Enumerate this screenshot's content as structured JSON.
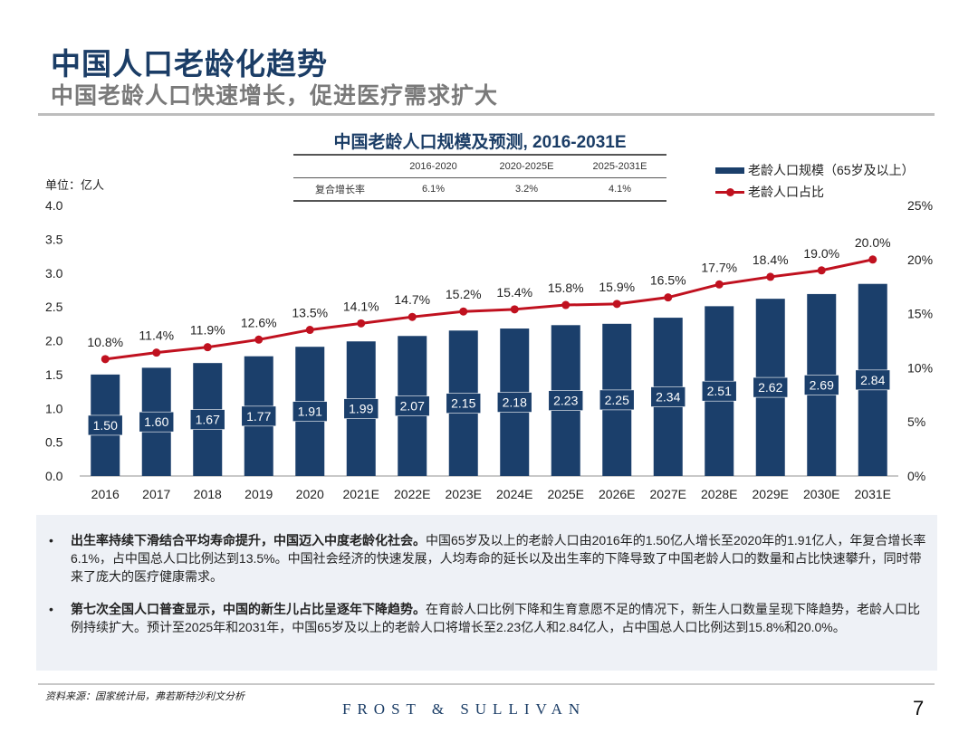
{
  "header": {
    "title": "中国人口老龄化趋势",
    "subtitle": "中国老龄人口快速增长，促进医疗需求扩大"
  },
  "cagr_table": {
    "columns": [
      "",
      "2016-2020",
      "2020-2025E",
      "2025-2031E"
    ],
    "row_label": "复合增长率",
    "values": [
      "6.1%",
      "3.2%",
      "4.1%"
    ]
  },
  "chart_data": {
    "type": "bar",
    "title": "中国老龄人口规模及预测, 2016-2031E",
    "unit_label": "单位：亿人",
    "categories": [
      "2016",
      "2017",
      "2018",
      "2019",
      "2020",
      "2021E",
      "2022E",
      "2023E",
      "2024E",
      "2025E",
      "2026E",
      "2027E",
      "2028E",
      "2029E",
      "2030E",
      "2031E"
    ],
    "series": [
      {
        "name": "老龄人口规模（65岁及以上）",
        "type": "bar",
        "axis": "left",
        "color": "#1b3f6b",
        "values": [
          1.5,
          1.6,
          1.67,
          1.77,
          1.91,
          1.99,
          2.07,
          2.15,
          2.18,
          2.23,
          2.25,
          2.34,
          2.51,
          2.62,
          2.69,
          2.84
        ],
        "labels": [
          "1.50",
          "1.60",
          "1.67",
          "1.77",
          "1.91",
          "1.99",
          "2.07",
          "2.15",
          "2.18",
          "2.23",
          "2.25",
          "2.34",
          "2.51",
          "2.62",
          "2.69",
          "2.84"
        ]
      },
      {
        "name": "老龄人口占比",
        "type": "line",
        "axis": "right",
        "color": "#c0111f",
        "values": [
          10.8,
          11.4,
          11.9,
          12.6,
          13.5,
          14.1,
          14.7,
          15.2,
          15.4,
          15.8,
          15.9,
          16.5,
          17.7,
          18.4,
          19.0,
          20.0
        ],
        "labels": [
          "10.8%",
          "11.4%",
          "11.9%",
          "12.6%",
          "13.5%",
          "14.1%",
          "14.7%",
          "15.2%",
          "15.4%",
          "15.8%",
          "15.9%",
          "16.5%",
          "17.7%",
          "18.4%",
          "19.0%",
          "20.0%"
        ]
      }
    ],
    "y_left": {
      "range": [
        0,
        4.0
      ],
      "ticks": [
        "0.0",
        "0.5",
        "1.0",
        "1.5",
        "2.0",
        "2.5",
        "3.0",
        "3.5",
        "4.0"
      ]
    },
    "y_right": {
      "range": [
        0,
        25
      ],
      "ticks": [
        "0%",
        "5%",
        "10%",
        "15%",
        "20%",
        "25%"
      ]
    },
    "grid": false,
    "legend_position": "top-right"
  },
  "bullets": [
    {
      "bold": "出生率持续下滑结合平均寿命提升，中国迈入中度老龄化社会。",
      "text": "中国65岁及以上的老龄人口由2016年的1.50亿人增长至2020年的1.91亿人，年复合增长率6.1%，占中国总人口比例达到13.5%。中国社会经济的快速发展，人均寿命的延长以及出生率的下降导致了中国老龄人口的数量和占比快速攀升，同时带来了庞大的医疗健康需求。"
    },
    {
      "bold": "第七次全国人口普查显示，中国的新生儿占比呈逐年下降趋势。",
      "text": "在育龄人口比例下降和生育意愿不足的情况下，新生人口数量呈现下降趋势，老龄人口比例持续扩大。预计至2025年和2031年，中国65岁及以上的老龄人口将增长至2.23亿人和2.84亿人，占中国总人口比例达到15.8%和20.0%。"
    }
  ],
  "footer": {
    "source": "资料来源：国家统计局，弗若斯特沙利文分析",
    "brand": "FROST & SULLIVAN",
    "page_number": "7"
  }
}
